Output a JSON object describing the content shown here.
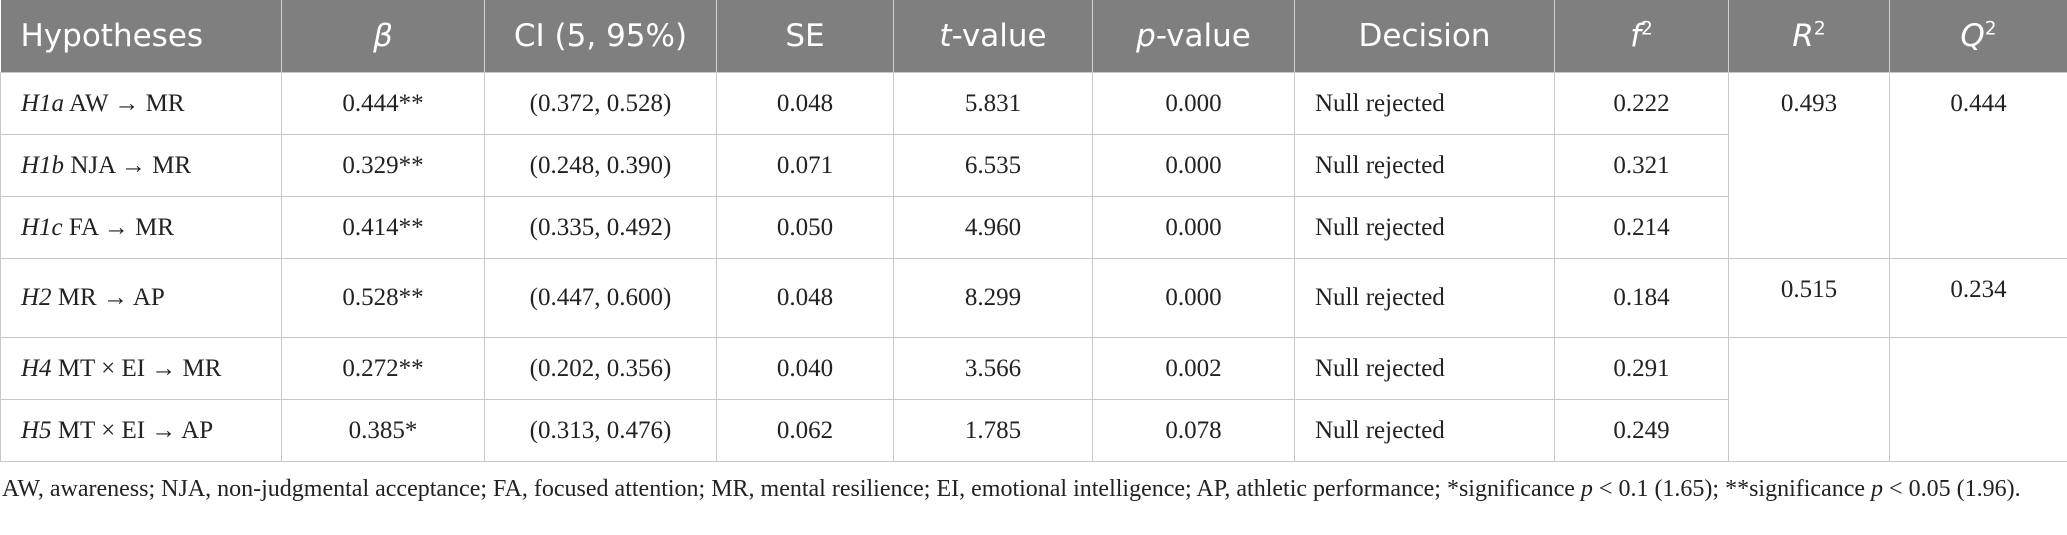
{
  "table": {
    "headers": [
      {
        "text": "Hypotheses"
      },
      {
        "italic": "β"
      },
      {
        "text": "CI (5, 95%)"
      },
      {
        "text": "SE"
      },
      {
        "italic": "t",
        "text": "-value"
      },
      {
        "italic": "p",
        "text": "-value"
      },
      {
        "text": "Decision"
      },
      {
        "italic": "f",
        "sup": "2"
      },
      {
        "italic": "R",
        "sup": "2"
      },
      {
        "italic": "Q",
        "sup": "2"
      }
    ],
    "rows": [
      {
        "id": "H1a",
        "path": "AW → MR",
        "cells": [
          "0.444**",
          "(0.372, 0.528)",
          "0.048",
          "5.831",
          "0.000",
          "Null rejected",
          "0.222"
        ],
        "r2": "0.493",
        "q2": "0.444"
      },
      {
        "id": "H1b",
        "path": "NJA → MR",
        "cells": [
          "0.329**",
          "(0.248, 0.390)",
          "0.071",
          "6.535",
          "0.000",
          "Null rejected",
          "0.321"
        ]
      },
      {
        "id": "H1c",
        "path": "FA → MR",
        "cells": [
          "0.414**",
          "(0.335, 0.492)",
          "0.050",
          "4.960",
          "0.000",
          "Null rejected",
          "0.214"
        ]
      },
      {
        "id": "H2",
        "path": "MR → AP",
        "cells": [
          "0.528**",
          "(0.447, 0.600)",
          "0.048",
          "8.299",
          "0.000",
          "Null rejected",
          "0.184"
        ],
        "r2": "0.515",
        "q2": "0.234"
      },
      {
        "id": "H4",
        "path": "MT × EI → MR",
        "cells": [
          "0.272**",
          "(0.202, 0.356)",
          "0.040",
          "3.566",
          "0.002",
          "Null rejected",
          "0.291"
        ]
      },
      {
        "id": "H5",
        "path": "MT × EI → AP",
        "cells": [
          "0.385*",
          "(0.313, 0.476)",
          "0.062",
          "1.785",
          "0.078",
          "Null rejected",
          "0.249"
        ]
      }
    ],
    "footnote": [
      "AW, awareness; NJA, non-judgmental acceptance; FA, focused attention; MR, mental resilience; EI, emotional intelligence; AP, athletic performance; *significance ",
      "p",
      " < 0.1 (1.65); **significance ",
      "p",
      " < 0.05 (1.96)."
    ]
  }
}
